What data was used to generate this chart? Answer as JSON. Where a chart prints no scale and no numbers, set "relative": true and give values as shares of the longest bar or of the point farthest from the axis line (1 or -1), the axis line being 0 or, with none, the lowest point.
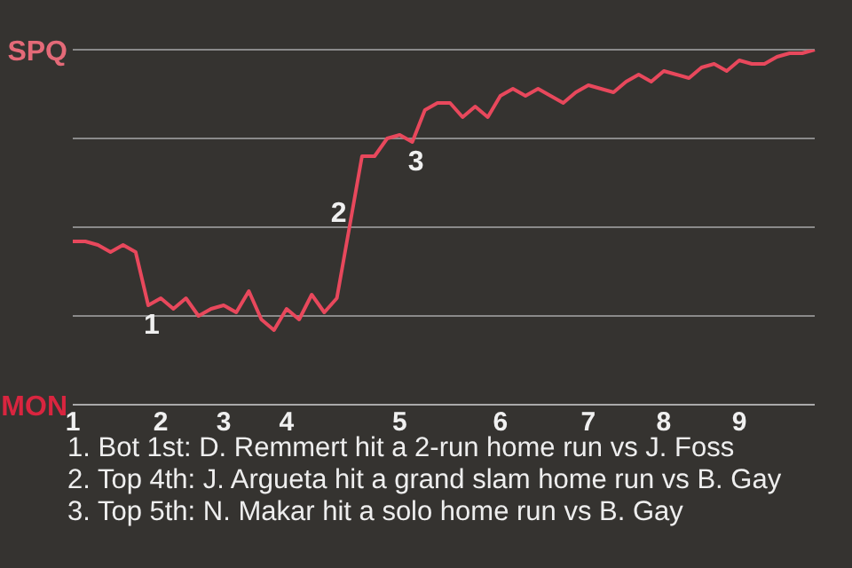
{
  "chart_data": {
    "type": "line",
    "relative": true,
    "categories": [
      "1",
      null,
      null,
      null,
      null,
      null,
      null,
      "2",
      null,
      null,
      null,
      null,
      "3",
      null,
      null,
      null,
      null,
      "4",
      null,
      null,
      null,
      null,
      null,
      null,
      null,
      null,
      "5",
      null,
      null,
      null,
      null,
      null,
      null,
      null,
      "6",
      null,
      null,
      null,
      null,
      null,
      null,
      "7",
      null,
      null,
      null,
      null,
      null,
      "8",
      null,
      null,
      null,
      null,
      null,
      "9",
      null,
      null,
      null,
      null,
      null,
      null
    ],
    "series": [
      {
        "color": "#e8485c",
        "values": [
          0.46,
          0.46,
          0.45,
          0.43,
          0.45,
          0.43,
          0.28,
          0.3,
          0.27,
          0.3,
          0.25,
          0.27,
          0.28,
          0.26,
          0.32,
          0.24,
          0.21,
          0.27,
          0.24,
          0.31,
          0.26,
          0.3,
          0.5,
          0.7,
          0.7,
          0.75,
          0.76,
          0.74,
          0.83,
          0.85,
          0.85,
          0.81,
          0.84,
          0.81,
          0.87,
          0.89,
          0.87,
          0.89,
          0.87,
          0.85,
          0.88,
          0.9,
          0.89,
          0.88,
          0.91,
          0.93,
          0.91,
          0.94,
          0.93,
          0.92,
          0.95,
          0.96,
          0.94,
          0.97,
          0.96,
          0.96,
          0.98,
          0.99,
          0.99,
          1
        ]
      }
    ],
    "grid": "y",
    "legend": false,
    "marker": "none",
    "line_style": "solid",
    "annotations": [
      "SPQ",
      "MON",
      {
        "text": "1",
        "y": 0.28
      },
      {
        "text": "2",
        "y": 0.5
      },
      {
        "text": "3",
        "y": 0.74
      },
      "1. Bot 1st: D. Remmert hit a 2-run home run vs J. Foss",
      "2. Top 4th: J. Argueta hit a grand slam home run vs B. Gay",
      "3. Top 5th: N. Makar hit a solo home run vs B. Gay"
    ]
  }
}
